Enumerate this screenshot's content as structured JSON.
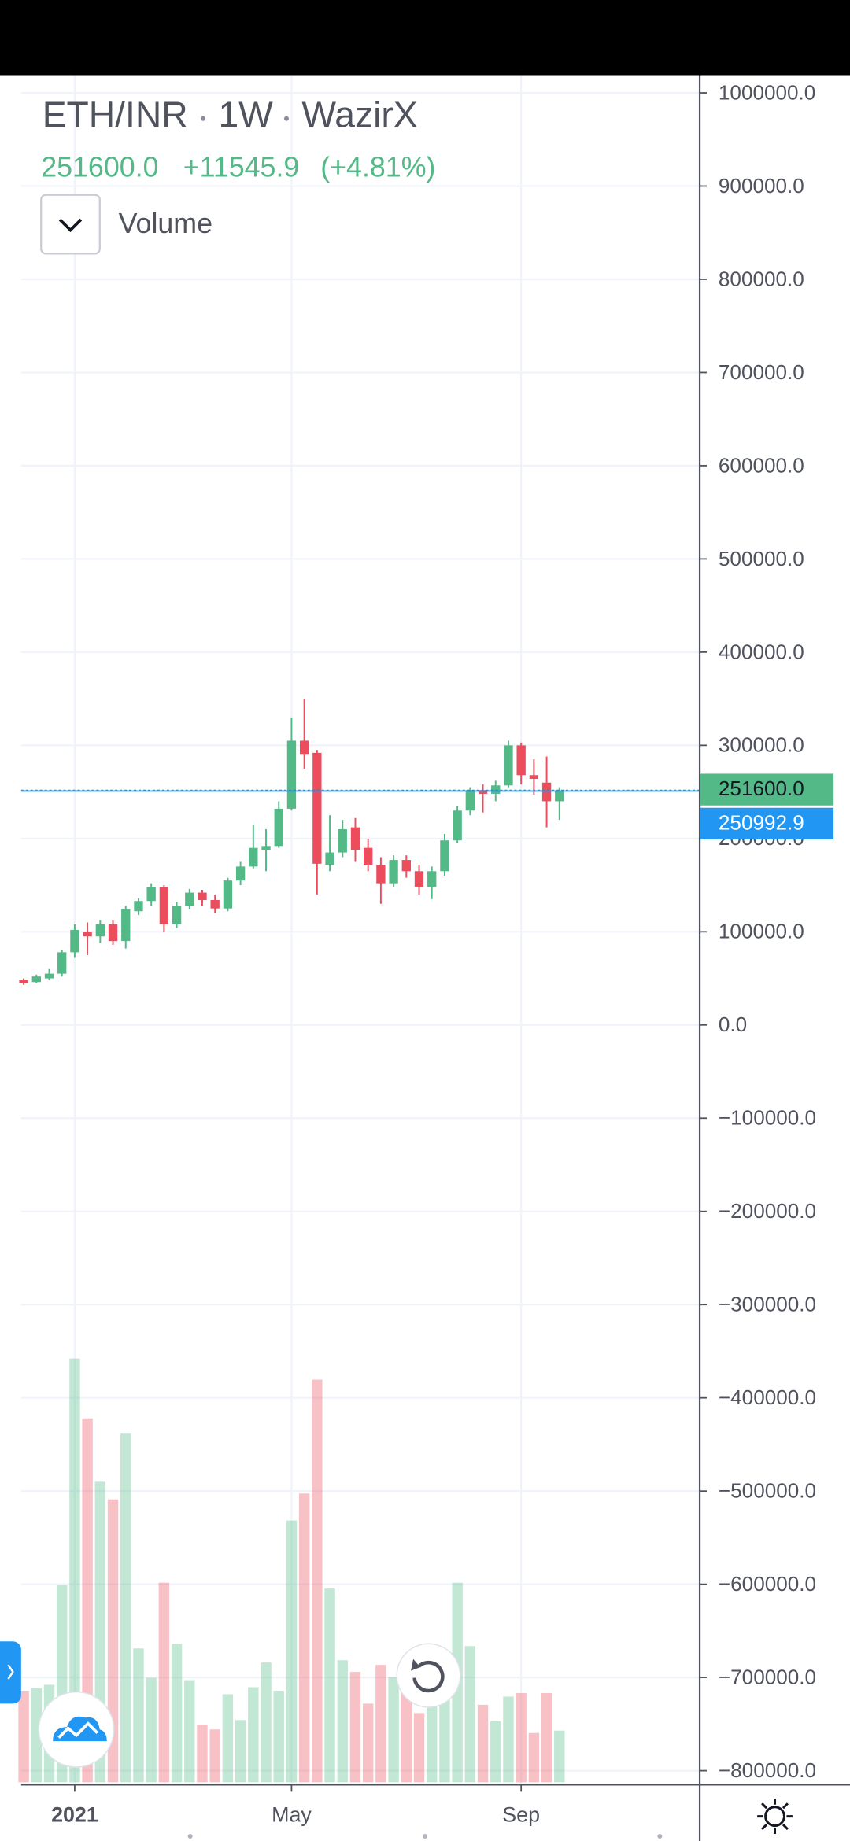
{
  "header": {
    "symbol": "ETH/INR",
    "interval": "1W",
    "exchange": "WazirX",
    "last": "251600.0",
    "change": "+11545.9",
    "change_pct": "(+4.81%)",
    "indicator": "Volume"
  },
  "chart_data": {
    "type": "candlestick",
    "up_color": "#53b987",
    "down_color": "#eb4d5c",
    "open": [
      48000,
      46000,
      50000,
      55000,
      78000,
      100000,
      95000,
      108000,
      90000,
      122000,
      133000,
      148000,
      108000,
      128000,
      142000,
      134000,
      125000,
      155000,
      170000,
      188000,
      192000,
      232000,
      305000,
      292000,
      172000,
      185000,
      212000,
      190000,
      172000,
      152000,
      177000,
      165000,
      148000,
      165000,
      198000,
      230000,
      252000,
      248000,
      257000,
      300000,
      268000,
      260000,
      240000
    ],
    "high": [
      50000,
      54000,
      60000,
      80000,
      108000,
      110000,
      112000,
      112000,
      128000,
      136000,
      152000,
      150000,
      132000,
      146000,
      145000,
      140000,
      158000,
      175000,
      215000,
      210000,
      240000,
      330000,
      350000,
      295000,
      225000,
      220000,
      222000,
      200000,
      180000,
      182000,
      182000,
      172000,
      170000,
      205000,
      235000,
      255000,
      258000,
      262000,
      305000,
      303000,
      285000,
      288000,
      255000
    ],
    "low": [
      43000,
      45000,
      48000,
      52000,
      72000,
      75000,
      88000,
      86000,
      82000,
      118000,
      128000,
      100000,
      104000,
      124000,
      128000,
      120000,
      122000,
      150000,
      168000,
      165000,
      190000,
      230000,
      275000,
      140000,
      165000,
      180000,
      175000,
      165000,
      130000,
      148000,
      158000,
      140000,
      135000,
      160000,
      195000,
      225000,
      228000,
      240000,
      255000,
      258000,
      247000,
      212000,
      220000
    ],
    "close": [
      45000,
      52000,
      55000,
      78000,
      102000,
      95000,
      108000,
      90000,
      124000,
      133000,
      148000,
      108000,
      128000,
      142000,
      134000,
      125000,
      155000,
      170000,
      190000,
      192000,
      232000,
      305000,
      290000,
      173000,
      185000,
      210000,
      188000,
      172000,
      152000,
      177000,
      165000,
      148000,
      165000,
      198000,
      230000,
      252000,
      248000,
      257000,
      300000,
      268000,
      264000,
      240000,
      251600
    ],
    "volume": [
      78,
      80,
      83,
      168,
      361,
      310,
      256,
      241,
      297,
      114,
      89,
      170,
      118,
      87,
      49,
      45,
      75,
      53,
      81,
      102,
      78,
      223,
      246,
      343,
      165,
      104,
      94,
      67,
      100,
      90,
      80,
      59,
      88,
      92,
      170,
      116,
      66,
      52,
      73,
      76,
      42,
      76,
      44
    ],
    "vlim": [
      0,
      400
    ],
    "xlim": [
      -0.2,
      53
    ],
    "xticks": [
      {
        "value": 4,
        "label": "2021"
      },
      {
        "value": 21,
        "label": "May"
      },
      {
        "value": 39,
        "label": "Sep"
      }
    ],
    "ylim": [
      -815000,
      1019000
    ],
    "yticks": [
      {
        "value": 1000000,
        "label": "1000000.0"
      },
      {
        "value": 900000,
        "label": "900000.0"
      },
      {
        "value": 800000,
        "label": "800000.0"
      },
      {
        "value": 700000,
        "label": "700000.0"
      },
      {
        "value": 600000,
        "label": "600000.0"
      },
      {
        "value": 500000,
        "label": "500000.0"
      },
      {
        "value": 400000,
        "label": "400000.0"
      },
      {
        "value": 300000,
        "label": "300000.0"
      },
      {
        "value": 200000,
        "label": "200000.0"
      },
      {
        "value": 100000,
        "label": "100000.0"
      },
      {
        "value": 0,
        "label": "0.0"
      },
      {
        "value": -100000,
        "label": "−100000.0"
      },
      {
        "value": -200000,
        "label": "−200000.0"
      },
      {
        "value": -300000,
        "label": "−300000.0"
      },
      {
        "value": -400000,
        "label": "−400000.0"
      },
      {
        "value": -500000,
        "label": "−500000.0"
      },
      {
        "value": -600000,
        "label": "−600000.0"
      },
      {
        "value": -700000,
        "label": "−700000.0"
      },
      {
        "value": -800000,
        "label": "−800000.0"
      }
    ],
    "grid": true,
    "price_lines": [
      {
        "value": 251600,
        "label": "251600.0",
        "color": "#53b987"
      },
      {
        "value": 250992.9,
        "label": "250992.9",
        "color": "#2196f3"
      }
    ]
  }
}
